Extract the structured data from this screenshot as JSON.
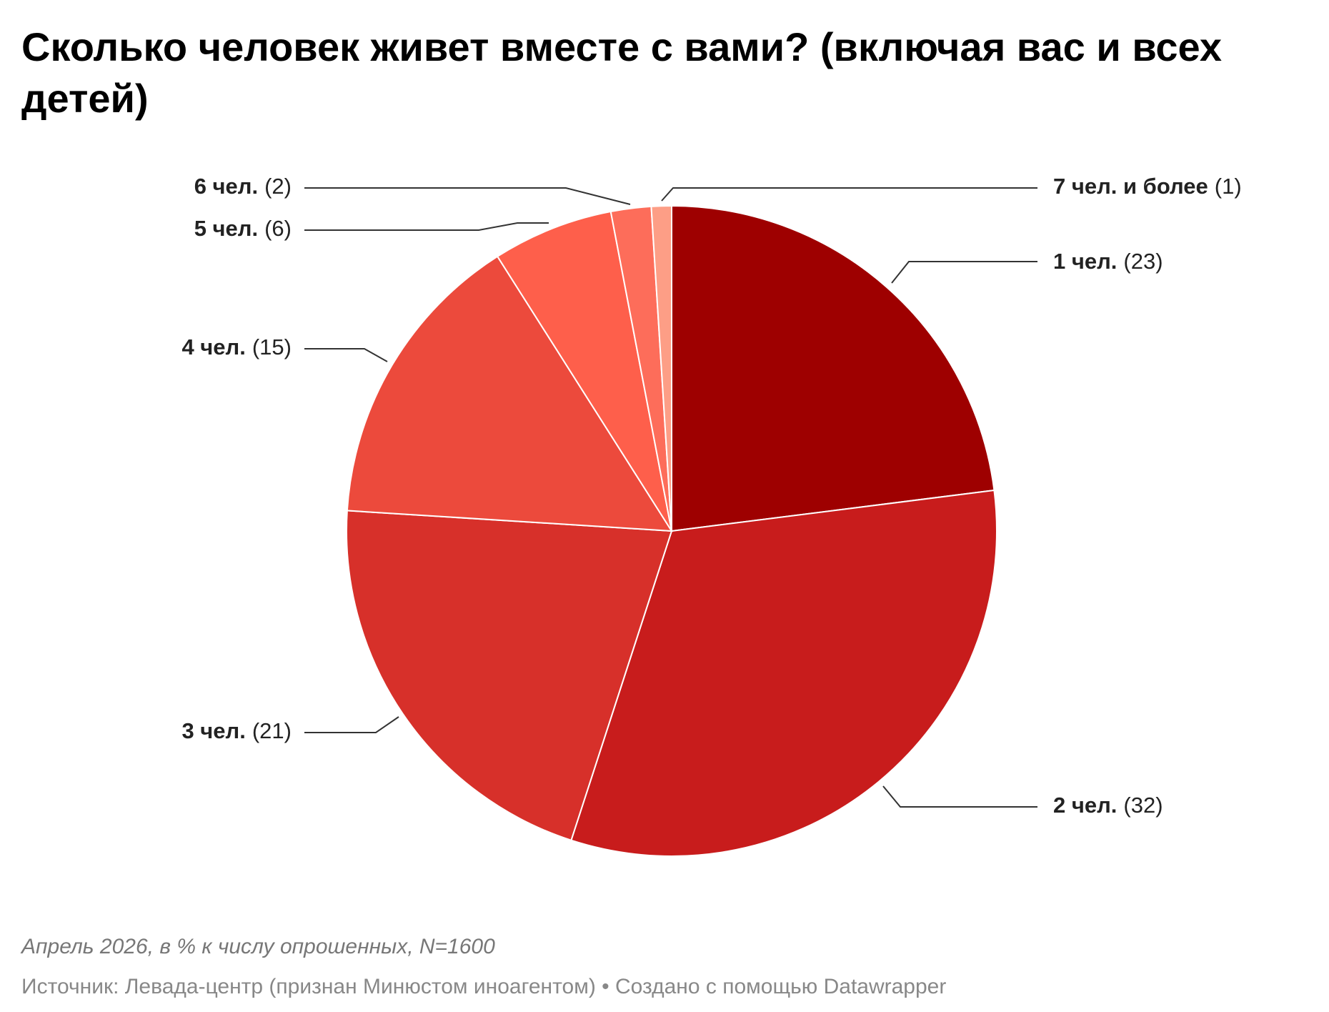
{
  "chart_data": {
    "type": "pie",
    "title": "Сколько человек живет вместе с вами? (включая вас и всех детей)",
    "categories": [
      "1 чел.",
      "2 чел.",
      "3 чел.",
      "4 чел.",
      "5 чел.",
      "6 чел.",
      "7 чел. и более"
    ],
    "values": [
      23,
      32,
      21,
      15,
      6,
      2,
      1
    ],
    "value_labels": [
      "(23)",
      "(32)",
      "(21)",
      "(15)",
      "(6)",
      "(2)",
      "(1)"
    ],
    "colors": [
      "#9e0000",
      "#c81c1c",
      "#d7302a",
      "#ec4a3c",
      "#fe5f4b",
      "#fd6d5a",
      "#fd9e86"
    ],
    "note": "Апрель 2026, в % к числу опрошенных, N=1600",
    "source": "Источник: Левада-центр (признан Минюстом иноагентом) • Создано с помощью Datawrapper"
  }
}
